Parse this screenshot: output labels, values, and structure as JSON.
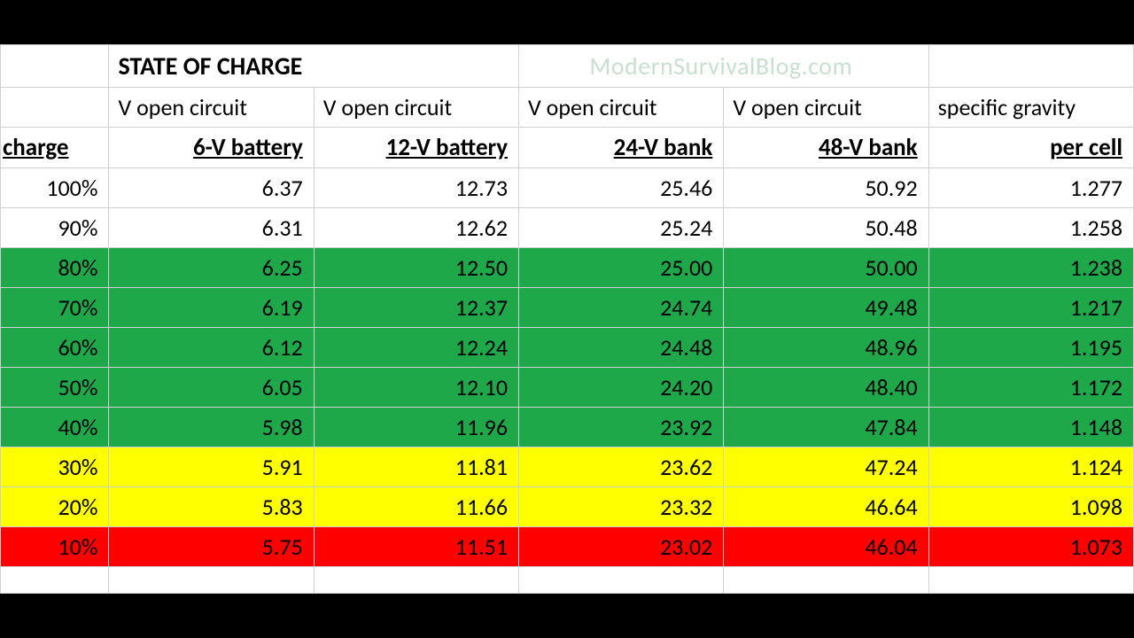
{
  "title": "STATE OF CHARGE",
  "watermark": "ModernSurvivalBlog.com",
  "headers": {
    "charge": "charge",
    "top": [
      "V open circuit",
      "V open circuit",
      "V open circuit",
      "V open circuit",
      "specific gravity"
    ],
    "bot": [
      "6-V battery",
      "12-V battery",
      "24-V bank",
      "48-V bank",
      "per cell"
    ]
  },
  "row_colors": {
    "white": "#ffffff",
    "green": "#1fa84a",
    "yellow": "#ffff00",
    "red": "#ff0000"
  },
  "text_color": "#000000",
  "grid_color": "#d0d0d0",
  "font_size_pt": 20,
  "rows": [
    {
      "charge": "100%",
      "v6": "6.37",
      "v12": "12.73",
      "v24": "25.46",
      "v48": "50.92",
      "sg": "1.277",
      "band": "white"
    },
    {
      "charge": "90%",
      "v6": "6.31",
      "v12": "12.62",
      "v24": "25.24",
      "v48": "50.48",
      "sg": "1.258",
      "band": "white"
    },
    {
      "charge": "80%",
      "v6": "6.25",
      "v12": "12.50",
      "v24": "25.00",
      "v48": "50.00",
      "sg": "1.238",
      "band": "green"
    },
    {
      "charge": "70%",
      "v6": "6.19",
      "v12": "12.37",
      "v24": "24.74",
      "v48": "49.48",
      "sg": "1.217",
      "band": "green"
    },
    {
      "charge": "60%",
      "v6": "6.12",
      "v12": "12.24",
      "v24": "24.48",
      "v48": "48.96",
      "sg": "1.195",
      "band": "green"
    },
    {
      "charge": "50%",
      "v6": "6.05",
      "v12": "12.10",
      "v24": "24.20",
      "v48": "48.40",
      "sg": "1.172",
      "band": "green"
    },
    {
      "charge": "40%",
      "v6": "5.98",
      "v12": "11.96",
      "v24": "23.92",
      "v48": "47.84",
      "sg": "1.148",
      "band": "green"
    },
    {
      "charge": "30%",
      "v6": "5.91",
      "v12": "11.81",
      "v24": "23.62",
      "v48": "47.24",
      "sg": "1.124",
      "band": "yellow"
    },
    {
      "charge": "20%",
      "v6": "5.83",
      "v12": "11.66",
      "v24": "23.32",
      "v48": "46.64",
      "sg": "1.098",
      "band": "yellow"
    },
    {
      "charge": "10%",
      "v6": "5.75",
      "v12": "11.51",
      "v24": "23.02",
      "v48": "46.04",
      "sg": "1.073",
      "band": "red"
    }
  ]
}
